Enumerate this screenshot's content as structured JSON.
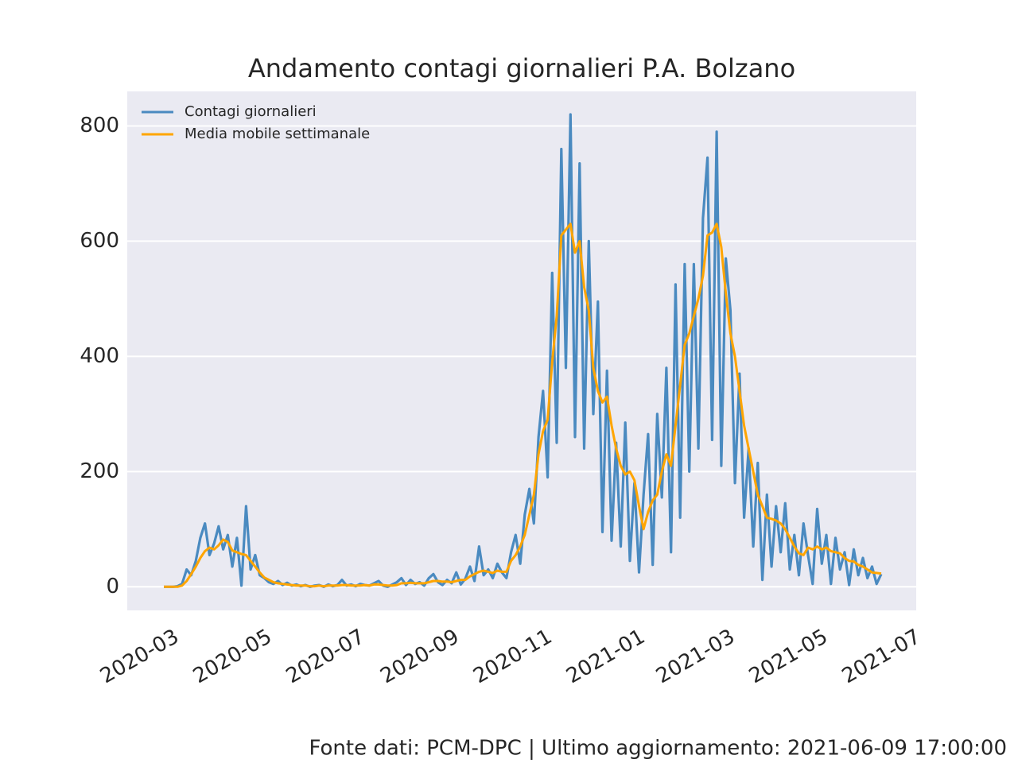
{
  "chart_data": {
    "type": "line",
    "title": "Andamento contagi giornalieri P.A. Bolzano",
    "footer": "Fonte dati: PCM-DPC | Ultimo aggiornamento: 2021-06-09 17:00:00",
    "x": [
      "2020-02-24",
      "2020-02-27",
      "2020-03-01",
      "2020-03-04",
      "2020-03-07",
      "2020-03-10",
      "2020-03-13",
      "2020-03-16",
      "2020-03-19",
      "2020-03-22",
      "2020-03-25",
      "2020-03-28",
      "2020-03-31",
      "2020-04-03",
      "2020-04-06",
      "2020-04-09",
      "2020-04-12",
      "2020-04-15",
      "2020-04-18",
      "2020-04-21",
      "2020-04-24",
      "2020-04-27",
      "2020-04-30",
      "2020-05-03",
      "2020-05-06",
      "2020-05-09",
      "2020-05-12",
      "2020-05-15",
      "2020-05-18",
      "2020-05-21",
      "2020-05-24",
      "2020-05-27",
      "2020-05-30",
      "2020-06-02",
      "2020-06-05",
      "2020-06-08",
      "2020-06-11",
      "2020-06-14",
      "2020-06-17",
      "2020-06-20",
      "2020-06-23",
      "2020-06-26",
      "2020-06-29",
      "2020-07-02",
      "2020-07-05",
      "2020-07-08",
      "2020-07-11",
      "2020-07-14",
      "2020-07-17",
      "2020-07-20",
      "2020-07-23",
      "2020-07-26",
      "2020-07-29",
      "2020-08-01",
      "2020-08-04",
      "2020-08-07",
      "2020-08-10",
      "2020-08-13",
      "2020-08-16",
      "2020-08-19",
      "2020-08-22",
      "2020-08-25",
      "2020-08-28",
      "2020-08-31",
      "2020-09-03",
      "2020-09-06",
      "2020-09-09",
      "2020-09-12",
      "2020-09-15",
      "2020-09-18",
      "2020-09-21",
      "2020-09-24",
      "2020-09-27",
      "2020-09-30",
      "2020-10-03",
      "2020-10-06",
      "2020-10-09",
      "2020-10-12",
      "2020-10-15",
      "2020-10-18",
      "2020-10-21",
      "2020-10-24",
      "2020-10-27",
      "2020-10-30",
      "2020-11-02",
      "2020-11-05",
      "2020-11-08",
      "2020-11-11",
      "2020-11-14",
      "2020-11-17",
      "2020-11-20",
      "2020-11-23",
      "2020-11-26",
      "2020-11-29",
      "2020-12-02",
      "2020-12-05",
      "2020-12-08",
      "2020-12-11",
      "2020-12-14",
      "2020-12-17",
      "2020-12-20",
      "2020-12-23",
      "2020-12-26",
      "2020-12-29",
      "2021-01-01",
      "2021-01-04",
      "2021-01-07",
      "2021-01-10",
      "2021-01-13",
      "2021-01-16",
      "2021-01-19",
      "2021-01-22",
      "2021-01-25",
      "2021-01-28",
      "2021-01-31",
      "2021-02-03",
      "2021-02-06",
      "2021-02-09",
      "2021-02-12",
      "2021-02-15",
      "2021-02-18",
      "2021-02-21",
      "2021-02-24",
      "2021-02-27",
      "2021-03-02",
      "2021-03-05",
      "2021-03-08",
      "2021-03-11",
      "2021-03-14",
      "2021-03-17",
      "2021-03-20",
      "2021-03-23",
      "2021-03-26",
      "2021-03-29",
      "2021-04-01",
      "2021-04-04",
      "2021-04-07",
      "2021-04-10",
      "2021-04-13",
      "2021-04-16",
      "2021-04-19",
      "2021-04-22",
      "2021-04-25",
      "2021-04-28",
      "2021-05-01",
      "2021-05-04",
      "2021-05-07",
      "2021-05-10",
      "2021-05-13",
      "2021-05-16",
      "2021-05-19",
      "2021-05-22",
      "2021-05-25",
      "2021-05-28",
      "2021-05-31",
      "2021-06-03",
      "2021-06-06",
      "2021-06-09"
    ],
    "series": [
      {
        "name": "Contagi giornalieri",
        "color": "#4a8ac0",
        "values": [
          0,
          0,
          0,
          1,
          5,
          30,
          20,
          45,
          85,
          110,
          55,
          75,
          105,
          65,
          90,
          35,
          85,
          2,
          140,
          30,
          55,
          20,
          15,
          8,
          5,
          10,
          3,
          7,
          2,
          4,
          1,
          3,
          0,
          2,
          3,
          0,
          4,
          1,
          3,
          12,
          2,
          4,
          1,
          5,
          3,
          2,
          6,
          10,
          2,
          0,
          4,
          8,
          15,
          3,
          12,
          5,
          8,
          2,
          15,
          22,
          8,
          3,
          12,
          6,
          25,
          4,
          14,
          35,
          10,
          70,
          20,
          30,
          15,
          40,
          25,
          15,
          60,
          90,
          40,
          125,
          170,
          110,
          260,
          340,
          190,
          545,
          250,
          760,
          380,
          820,
          260,
          735,
          240,
          600,
          300,
          495,
          95,
          375,
          80,
          250,
          70,
          285,
          45,
          180,
          25,
          160,
          265,
          38,
          300,
          155,
          380,
          60,
          525,
          120,
          560,
          200,
          560,
          240,
          640,
          745,
          255,
          790,
          210,
          570,
          480,
          180,
          370,
          120,
          240,
          70,
          215,
          12,
          160,
          35,
          140,
          60,
          145,
          30,
          90,
          20,
          110,
          55,
          5,
          135,
          40,
          90,
          5,
          85,
          30,
          60,
          3,
          65,
          20,
          50,
          15,
          35,
          5,
          22
        ]
      },
      {
        "name": "Media mobile settimanale",
        "color": "#ffa500",
        "values": [
          0,
          0,
          0,
          0,
          2,
          10,
          22,
          35,
          50,
          62,
          68,
          65,
          72,
          82,
          78,
          63,
          60,
          57,
          55,
          45,
          35,
          25,
          16,
          12,
          8,
          6,
          5,
          4,
          3,
          2,
          2,
          2,
          1,
          1,
          2,
          1,
          2,
          2,
          2,
          3,
          3,
          2,
          2,
          2,
          3,
          2,
          4,
          4,
          3,
          2,
          2,
          3,
          6,
          6,
          7,
          6,
          6,
          6,
          8,
          10,
          10,
          9,
          9,
          8,
          10,
          12,
          12,
          18,
          22,
          26,
          28,
          26,
          24,
          28,
          26,
          26,
          45,
          55,
          70,
          90,
          125,
          160,
          230,
          270,
          290,
          390,
          470,
          610,
          620,
          630,
          580,
          600,
          520,
          480,
          380,
          340,
          320,
          330,
          280,
          240,
          210,
          195,
          200,
          185,
          140,
          100,
          130,
          150,
          160,
          200,
          230,
          210,
          280,
          350,
          420,
          440,
          470,
          500,
          540,
          610,
          615,
          630,
          590,
          510,
          440,
          400,
          340,
          280,
          240,
          200,
          160,
          140,
          120,
          118,
          115,
          110,
          100,
          85,
          70,
          58,
          55,
          68,
          65,
          70,
          65,
          68,
          62,
          60,
          58,
          50,
          45,
          44,
          38,
          35,
          30,
          25,
          24,
          23
        ]
      }
    ],
    "xlim": [
      "2020-01-31",
      "2021-07-02"
    ],
    "xticks": [
      {
        "value": "2020-03-01",
        "label": "2020-03"
      },
      {
        "value": "2020-05-01",
        "label": "2020-05"
      },
      {
        "value": "2020-07-01",
        "label": "2020-07"
      },
      {
        "value": "2020-09-01",
        "label": "2020-09"
      },
      {
        "value": "2020-11-01",
        "label": "2020-11"
      },
      {
        "value": "2021-01-01",
        "label": "2021-01"
      },
      {
        "value": "2021-03-01",
        "label": "2021-03"
      },
      {
        "value": "2021-05-01",
        "label": "2021-05"
      },
      {
        "value": "2021-07-01",
        "label": "2021-07"
      }
    ],
    "ylim": [
      -41,
      860
    ],
    "yticks": [
      0,
      200,
      400,
      600,
      800
    ],
    "grid": true,
    "legend": "upper-left"
  }
}
